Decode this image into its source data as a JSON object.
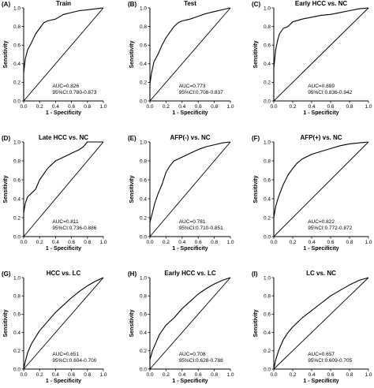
{
  "chart_data": [
    {
      "type": "line",
      "letter": "(A)",
      "title": "Train",
      "xlabel": "1 - Specificity",
      "ylabel": "Sensitivity",
      "xlim": [
        0,
        1
      ],
      "ylim": [
        0,
        1
      ],
      "xticks": [
        "0.0",
        "0.2",
        "0.4",
        "0.6",
        "0.8",
        "1.0"
      ],
      "yticks": [
        "0.0",
        "0.2",
        "0.4",
        "0.6",
        "0.8",
        "1.0"
      ],
      "annotations": [
        "AUC=0.826",
        "95%CI:0.780-0.873"
      ],
      "series": [
        {
          "values": [
            [
              0,
              0
            ],
            [
              0,
              0.3
            ],
            [
              0.02,
              0.45
            ],
            [
              0.05,
              0.55
            ],
            [
              0.1,
              0.63
            ],
            [
              0.15,
              0.72
            ],
            [
              0.2,
              0.78
            ],
            [
              0.25,
              0.84
            ],
            [
              0.3,
              0.86
            ],
            [
              0.4,
              0.88
            ],
            [
              0.5,
              0.93
            ],
            [
              0.6,
              0.95
            ],
            [
              0.7,
              0.97
            ],
            [
              0.8,
              0.98
            ],
            [
              0.9,
              0.99
            ],
            [
              1,
              1
            ]
          ]
        }
      ]
    },
    {
      "type": "line",
      "letter": "(B)",
      "title": "Test",
      "xlabel": "1 - Specificity",
      "ylabel": "Sensitivity",
      "xlim": [
        0,
        1
      ],
      "ylim": [
        0,
        1
      ],
      "xticks": [
        "0.0",
        "0.2",
        "0.4",
        "0.6",
        "0.8",
        "1.0"
      ],
      "yticks": [
        "0.0",
        "0.2",
        "0.4",
        "0.6",
        "0.8",
        "1.0"
      ],
      "annotations": [
        "AUC=0.773",
        "95%CI:0.708-0.837"
      ],
      "series": [
        {
          "values": [
            [
              0,
              0
            ],
            [
              0,
              0.18
            ],
            [
              0.02,
              0.3
            ],
            [
              0.05,
              0.42
            ],
            [
              0.1,
              0.5
            ],
            [
              0.15,
              0.6
            ],
            [
              0.2,
              0.68
            ],
            [
              0.25,
              0.74
            ],
            [
              0.3,
              0.8
            ],
            [
              0.35,
              0.84
            ],
            [
              0.4,
              0.86
            ],
            [
              0.5,
              0.88
            ],
            [
              0.6,
              0.91
            ],
            [
              0.7,
              0.94
            ],
            [
              0.8,
              0.96
            ],
            [
              0.9,
              0.98
            ],
            [
              1,
              1
            ]
          ]
        }
      ]
    },
    {
      "type": "line",
      "letter": "(C)",
      "title": "Early HCC vs. NC",
      "xlabel": "1 - Specificity",
      "ylabel": "Sensitivity",
      "xlim": [
        0,
        1
      ],
      "ylim": [
        0,
        1
      ],
      "xticks": [
        "0.0",
        "0.2",
        "0.4",
        "0.6",
        "0.8",
        "1.0"
      ],
      "yticks": [
        "0.0",
        "0.2",
        "0.4",
        "0.6",
        "0.8",
        "1.0"
      ],
      "annotations": [
        "AUC=0.889",
        "95%CI:0.836-0.942"
      ],
      "series": [
        {
          "values": [
            [
              0,
              0
            ],
            [
              0,
              0.35
            ],
            [
              0.02,
              0.55
            ],
            [
              0.04,
              0.65
            ],
            [
              0.06,
              0.72
            ],
            [
              0.1,
              0.78
            ],
            [
              0.15,
              0.8
            ],
            [
              0.2,
              0.85
            ],
            [
              0.3,
              0.88
            ],
            [
              0.4,
              0.9
            ],
            [
              0.5,
              0.92
            ],
            [
              0.6,
              0.93
            ],
            [
              0.7,
              0.95
            ],
            [
              0.8,
              0.97
            ],
            [
              0.9,
              0.99
            ],
            [
              1,
              1
            ]
          ]
        }
      ]
    },
    {
      "type": "line",
      "letter": "(D)",
      "title": "Late HCC vs. NC",
      "xlabel": "1 - Specificity",
      "ylabel": "Sensitivity",
      "xlim": [
        0,
        1
      ],
      "ylim": [
        0,
        1
      ],
      "xticks": [
        "0.0",
        "0.2",
        "0.4",
        "0.6",
        "0.8",
        "1.0"
      ],
      "yticks": [
        "0.0",
        "0.2",
        "0.4",
        "0.6",
        "0.8",
        "1.0"
      ],
      "annotations": [
        "AUC=0.811",
        "95%CI:0.736-0.886"
      ],
      "series": [
        {
          "values": [
            [
              0,
              0
            ],
            [
              0,
              0.25
            ],
            [
              0.02,
              0.35
            ],
            [
              0.05,
              0.42
            ],
            [
              0.1,
              0.46
            ],
            [
              0.15,
              0.5
            ],
            [
              0.2,
              0.6
            ],
            [
              0.25,
              0.66
            ],
            [
              0.3,
              0.72
            ],
            [
              0.35,
              0.76
            ],
            [
              0.4,
              0.8
            ],
            [
              0.5,
              0.84
            ],
            [
              0.6,
              0.88
            ],
            [
              0.7,
              0.92
            ],
            [
              0.75,
              0.95
            ],
            [
              0.8,
              1
            ],
            [
              1,
              1
            ]
          ]
        }
      ]
    },
    {
      "type": "line",
      "letter": "(E)",
      "title": "AFP(-) vs. NC",
      "xlabel": "1 - Specificity",
      "ylabel": "Sensitivity",
      "xlim": [
        0,
        1
      ],
      "ylim": [
        0,
        1
      ],
      "xticks": [
        "0.0",
        "0.2",
        "0.4",
        "0.6",
        "0.8",
        "1.0"
      ],
      "yticks": [
        "0.0",
        "0.2",
        "0.4",
        "0.6",
        "0.8",
        "1.0"
      ],
      "annotations": [
        "AUC=0.781",
        "95%CI:0.710-0.851"
      ],
      "series": [
        {
          "values": [
            [
              0,
              0
            ],
            [
              0,
              0.15
            ],
            [
              0.03,
              0.25
            ],
            [
              0.06,
              0.35
            ],
            [
              0.1,
              0.45
            ],
            [
              0.15,
              0.55
            ],
            [
              0.2,
              0.68
            ],
            [
              0.25,
              0.75
            ],
            [
              0.3,
              0.8
            ],
            [
              0.4,
              0.84
            ],
            [
              0.5,
              0.88
            ],
            [
              0.6,
              0.92
            ],
            [
              0.7,
              0.95
            ],
            [
              0.8,
              0.97
            ],
            [
              0.9,
              0.99
            ],
            [
              1,
              1
            ]
          ]
        }
      ]
    },
    {
      "type": "line",
      "letter": "(F)",
      "title": "AFP(+) vs. NC",
      "xlabel": "1 - Specificity",
      "ylabel": "Sensitivity",
      "xlim": [
        0,
        1
      ],
      "ylim": [
        0,
        1
      ],
      "xticks": [
        "0.0",
        "0.2",
        "0.4",
        "0.6",
        "0.8",
        "1.0"
      ],
      "yticks": [
        "0.0",
        "0.2",
        "0.4",
        "0.6",
        "0.8",
        "1.0"
      ],
      "annotations": [
        "AUC=0.822",
        "95%CI:0.772-0.872"
      ],
      "series": [
        {
          "values": [
            [
              0,
              0
            ],
            [
              0,
              0.2
            ],
            [
              0.02,
              0.32
            ],
            [
              0.05,
              0.42
            ],
            [
              0.1,
              0.55
            ],
            [
              0.15,
              0.65
            ],
            [
              0.2,
              0.72
            ],
            [
              0.25,
              0.78
            ],
            [
              0.3,
              0.82
            ],
            [
              0.4,
              0.87
            ],
            [
              0.5,
              0.9
            ],
            [
              0.6,
              0.93
            ],
            [
              0.7,
              0.96
            ],
            [
              0.8,
              0.98
            ],
            [
              0.9,
              0.99
            ],
            [
              1,
              1
            ]
          ]
        }
      ]
    },
    {
      "type": "line",
      "letter": "(G)",
      "title": "HCC vs. LC",
      "xlabel": "1 - Specificity",
      "ylabel": "Sensitivity",
      "xlim": [
        0,
        1
      ],
      "ylim": [
        0,
        1
      ],
      "xticks": [
        "0.0",
        "0.2",
        "0.4",
        "0.6",
        "0.8",
        "1.0"
      ],
      "yticks": [
        "0.0",
        "0.2",
        "0.4",
        "0.6",
        "0.8",
        "1.0"
      ],
      "annotations": [
        "AUC=0.651",
        "95%CI:0.604-0.700"
      ],
      "series": [
        {
          "values": [
            [
              0,
              0
            ],
            [
              0.02,
              0.08
            ],
            [
              0.05,
              0.18
            ],
            [
              0.1,
              0.28
            ],
            [
              0.15,
              0.35
            ],
            [
              0.2,
              0.42
            ],
            [
              0.3,
              0.52
            ],
            [
              0.4,
              0.62
            ],
            [
              0.5,
              0.7
            ],
            [
              0.6,
              0.78
            ],
            [
              0.7,
              0.85
            ],
            [
              0.8,
              0.91
            ],
            [
              0.9,
              0.96
            ],
            [
              1,
              1
            ]
          ]
        }
      ]
    },
    {
      "type": "line",
      "letter": "(H)",
      "title": "Early HCC vs. LC",
      "xlabel": "1 - Specificity",
      "ylabel": "Sensitivity",
      "xlim": [
        0,
        1
      ],
      "ylim": [
        0,
        1
      ],
      "xticks": [
        "0.0",
        "0.2",
        "0.4",
        "0.6",
        "0.8",
        "1.0"
      ],
      "yticks": [
        "0.0",
        "0.2",
        "0.4",
        "0.6",
        "0.8",
        "1.0"
      ],
      "annotations": [
        "AUC=0.708",
        "95%CI:0.628-0.788"
      ],
      "series": [
        {
          "values": [
            [
              0,
              0
            ],
            [
              0,
              0.1
            ],
            [
              0.03,
              0.2
            ],
            [
              0.08,
              0.3
            ],
            [
              0.12,
              0.38
            ],
            [
              0.2,
              0.48
            ],
            [
              0.3,
              0.56
            ],
            [
              0.4,
              0.66
            ],
            [
              0.5,
              0.74
            ],
            [
              0.6,
              0.82
            ],
            [
              0.7,
              0.88
            ],
            [
              0.8,
              0.93
            ],
            [
              0.9,
              0.97
            ],
            [
              1,
              1
            ]
          ]
        }
      ]
    },
    {
      "type": "line",
      "letter": "(I)",
      "title": "LC vs. NC",
      "xlabel": "1 - Specificity",
      "ylabel": "Sensitivity",
      "xlim": [
        0,
        1
      ],
      "ylim": [
        0,
        1
      ],
      "xticks": [
        "0.0",
        "0.2",
        "0.4",
        "0.6",
        "0.8",
        "1.0"
      ],
      "yticks": [
        "0.0",
        "0.2",
        "0.4",
        "0.6",
        "0.8",
        "1.0"
      ],
      "annotations": [
        "AUC=0.657",
        "95%CI:0.609-0.705"
      ],
      "series": [
        {
          "values": [
            [
              0,
              0
            ],
            [
              0.02,
              0.1
            ],
            [
              0.05,
              0.2
            ],
            [
              0.1,
              0.32
            ],
            [
              0.15,
              0.4
            ],
            [
              0.2,
              0.46
            ],
            [
              0.3,
              0.56
            ],
            [
              0.4,
              0.64
            ],
            [
              0.5,
              0.72
            ],
            [
              0.6,
              0.8
            ],
            [
              0.7,
              0.86
            ],
            [
              0.8,
              0.92
            ],
            [
              0.9,
              0.97
            ],
            [
              1,
              1
            ]
          ]
        }
      ]
    }
  ]
}
